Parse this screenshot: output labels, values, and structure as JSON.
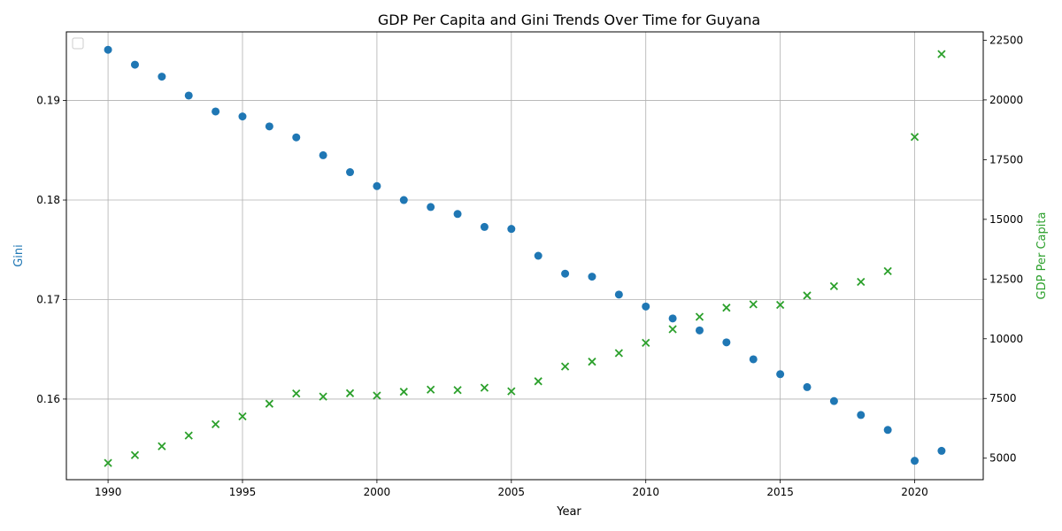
{
  "chart_data": {
    "type": "scatter",
    "title": "GDP Per Capita and Gini Trends Over Time for Guyana",
    "xlabel": "Year",
    "ylabel_left": "Gini",
    "ylabel_right": "GDP Per Capita",
    "xlim": [
      1988.45,
      2022.55
    ],
    "ylim_left": [
      0.1519,
      0.1969
    ],
    "ylim_right": [
      4100,
      22850
    ],
    "x_ticks": [
      1990,
      1995,
      2000,
      2005,
      2010,
      2015,
      2020
    ],
    "x_tick_labels": [
      "1990",
      "1995",
      "2000",
      "2005",
      "2010",
      "2015",
      "2020"
    ],
    "y_left_ticks": [
      0.16,
      0.17,
      0.18,
      0.19
    ],
    "y_left_tick_labels": [
      "0.16",
      "0.17",
      "0.18",
      "0.19"
    ],
    "y_right_ticks": [
      5000,
      7500,
      10000,
      12500,
      15000,
      17500,
      20000,
      22500
    ],
    "y_right_tick_labels": [
      "5000",
      "7500",
      "10000",
      "12500",
      "15000",
      "17500",
      "20000",
      "22500"
    ],
    "grid": true,
    "legend": "top-left (empty)",
    "x": [
      1990,
      1991,
      1992,
      1993,
      1994,
      1995,
      1996,
      1997,
      1998,
      1999,
      2000,
      2001,
      2002,
      2003,
      2004,
      2005,
      2006,
      2007,
      2008,
      2009,
      2010,
      2011,
      2012,
      2013,
      2014,
      2015,
      2016,
      2017,
      2018,
      2019,
      2020,
      2021
    ],
    "series": [
      {
        "axis": "left",
        "marker": "circle",
        "color": "#1f77b4",
        "values": [
          0.1951,
          0.1936,
          0.1924,
          0.1905,
          0.1889,
          0.1884,
          0.1874,
          0.1863,
          0.1845,
          0.1828,
          0.1814,
          0.18,
          0.1793,
          0.1786,
          0.1773,
          0.1771,
          0.1744,
          0.1726,
          0.1723,
          0.1705,
          0.1693,
          0.1681,
          0.1669,
          0.1657,
          0.164,
          0.1625,
          0.1612,
          0.1598,
          0.1584,
          0.1569,
          0.1538,
          0.1548
        ]
      },
      {
        "axis": "right",
        "marker": "x",
        "color": "#2ca02c",
        "values": [
          4800,
          5130,
          5500,
          5950,
          6420,
          6750,
          7280,
          7710,
          7580,
          7720,
          7620,
          7780,
          7870,
          7850,
          7950,
          7800,
          8220,
          8840,
          9040,
          9400,
          9830,
          10400,
          10920,
          11300,
          11440,
          11420,
          11810,
          12200,
          12380,
          12830,
          18450,
          21920
        ]
      }
    ]
  }
}
